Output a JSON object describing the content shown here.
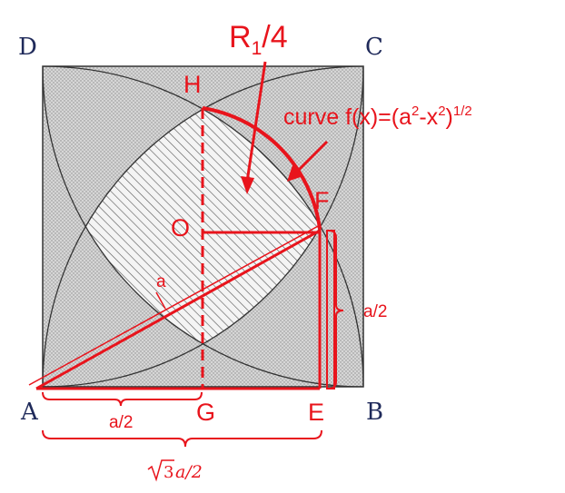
{
  "vertices": {
    "A": "A",
    "B": "B",
    "C": "C",
    "D": "D"
  },
  "points": {
    "H": "H",
    "O": "O",
    "F": "F",
    "G": "G",
    "E": "E"
  },
  "region_label": {
    "main": "R",
    "sub": "1",
    "suffix": "/4"
  },
  "curve_label": {
    "prefix": "curve f(x)=(a",
    "exp1": "2",
    "mid": "-x",
    "exp2": "2",
    "close": ")",
    "exp3": "1/2"
  },
  "side_label": "a",
  "half_label_right": "a/2",
  "half_label_bottom": "a/2",
  "sqrt_label": {
    "coef": "3",
    "rest": "a/2"
  },
  "colors": {
    "annotation": "#e8141c",
    "vertex": "#1f2a5a",
    "dark_region": "#3a3a3a",
    "light_region": "#cfcfcf"
  }
}
